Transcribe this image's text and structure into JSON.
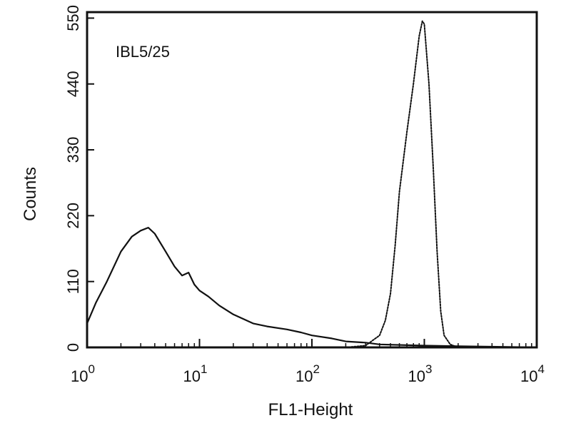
{
  "chart_data": {
    "type": "line",
    "annotation": "IBL5/25",
    "xlabel": "FL1-Height",
    "ylabel": "Counts",
    "x_scale": "log",
    "xlim": [
      1,
      10000
    ],
    "ylim": [
      0,
      560
    ],
    "x_ticks": [
      {
        "value": 1,
        "base": "10",
        "exp": "0"
      },
      {
        "value": 10,
        "base": "10",
        "exp": "1"
      },
      {
        "value": 100,
        "base": "10",
        "exp": "2"
      },
      {
        "value": 1000,
        "base": "10",
        "exp": "3"
      },
      {
        "value": 10000,
        "base": "10",
        "exp": "4"
      }
    ],
    "y_ticks": [
      {
        "value": 0,
        "label": "0"
      },
      {
        "value": 110,
        "label": "110"
      },
      {
        "value": 220,
        "label": "220"
      },
      {
        "value": 330,
        "label": "330"
      },
      {
        "value": 440,
        "label": "440"
      },
      {
        "value": 550,
        "label": "550"
      }
    ],
    "grid": false,
    "series": [
      {
        "style": "solid",
        "color": "#111111",
        "points": [
          [
            1.0,
            40
          ],
          [
            1.2,
            75
          ],
          [
            1.5,
            110
          ],
          [
            2.0,
            160
          ],
          [
            2.5,
            185
          ],
          [
            3.0,
            195
          ],
          [
            3.5,
            200
          ],
          [
            4.0,
            190
          ],
          [
            5.0,
            160
          ],
          [
            6.0,
            135
          ],
          [
            7.0,
            120
          ],
          [
            8.0,
            125
          ],
          [
            9.0,
            105
          ],
          [
            10,
            95
          ],
          [
            12,
            85
          ],
          [
            15,
            70
          ],
          [
            20,
            55
          ],
          [
            30,
            40
          ],
          [
            40,
            35
          ],
          [
            60,
            30
          ],
          [
            80,
            25
          ],
          [
            100,
            20
          ],
          [
            150,
            15
          ],
          [
            200,
            10
          ],
          [
            300,
            8
          ],
          [
            400,
            5
          ],
          [
            1000,
            3
          ],
          [
            2000,
            2
          ],
          [
            5000,
            1
          ],
          [
            10000,
            0
          ]
        ]
      },
      {
        "style": "dotted",
        "color": "#111111",
        "points": [
          [
            200,
            0
          ],
          [
            300,
            3
          ],
          [
            400,
            20
          ],
          [
            450,
            45
          ],
          [
            500,
            90
          ],
          [
            550,
            170
          ],
          [
            600,
            260
          ],
          [
            700,
            360
          ],
          [
            800,
            440
          ],
          [
            900,
            520
          ],
          [
            960,
            545
          ],
          [
            1000,
            540
          ],
          [
            1100,
            440
          ],
          [
            1200,
            300
          ],
          [
            1300,
            160
          ],
          [
            1400,
            60
          ],
          [
            1500,
            20
          ],
          [
            1700,
            5
          ],
          [
            2000,
            0
          ]
        ]
      }
    ]
  }
}
